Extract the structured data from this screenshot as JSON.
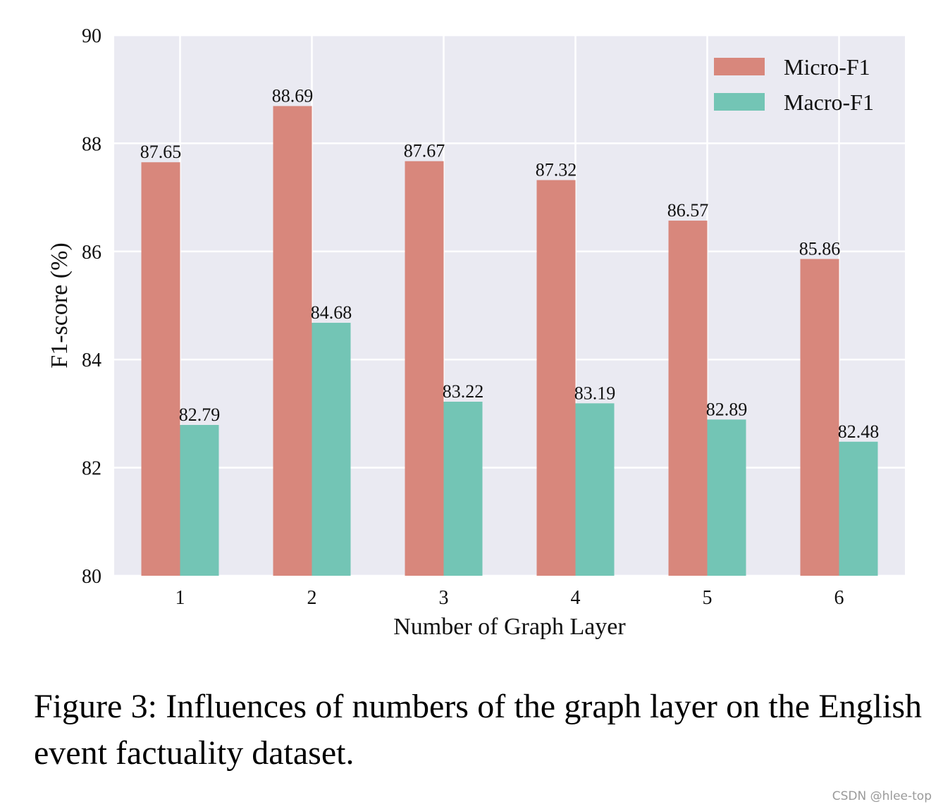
{
  "chart_data": {
    "type": "bar",
    "categories": [
      "1",
      "2",
      "3",
      "4",
      "5",
      "6"
    ],
    "series": [
      {
        "name": "Micro-F1",
        "values": [
          87.65,
          88.69,
          87.67,
          87.32,
          86.57,
          85.86
        ],
        "labels": [
          "87.65",
          "88.69",
          "87.67",
          "87.32",
          "86.57",
          "85.86"
        ],
        "color": "#d8877c"
      },
      {
        "name": "Macro-F1",
        "values": [
          82.79,
          84.68,
          83.22,
          83.19,
          82.89,
          82.48
        ],
        "labels": [
          "82.79",
          "84.68",
          "83.22",
          "83.19",
          "82.89",
          "82.48"
        ],
        "color": "#73c5b5"
      }
    ],
    "xlabel": "Number of Graph Layer",
    "ylabel": "F1-score (%)",
    "ylim": [
      80,
      90
    ],
    "yticks": [
      "80",
      "82",
      "84",
      "86",
      "88",
      "90"
    ],
    "grid": true,
    "plot_background": "#eaeaf2",
    "legend_position": "top-right"
  },
  "caption": "Figure 3: Influences of numbers of the graph layer on the English event factuality dataset.",
  "watermark": "CSDN @hlee-top"
}
